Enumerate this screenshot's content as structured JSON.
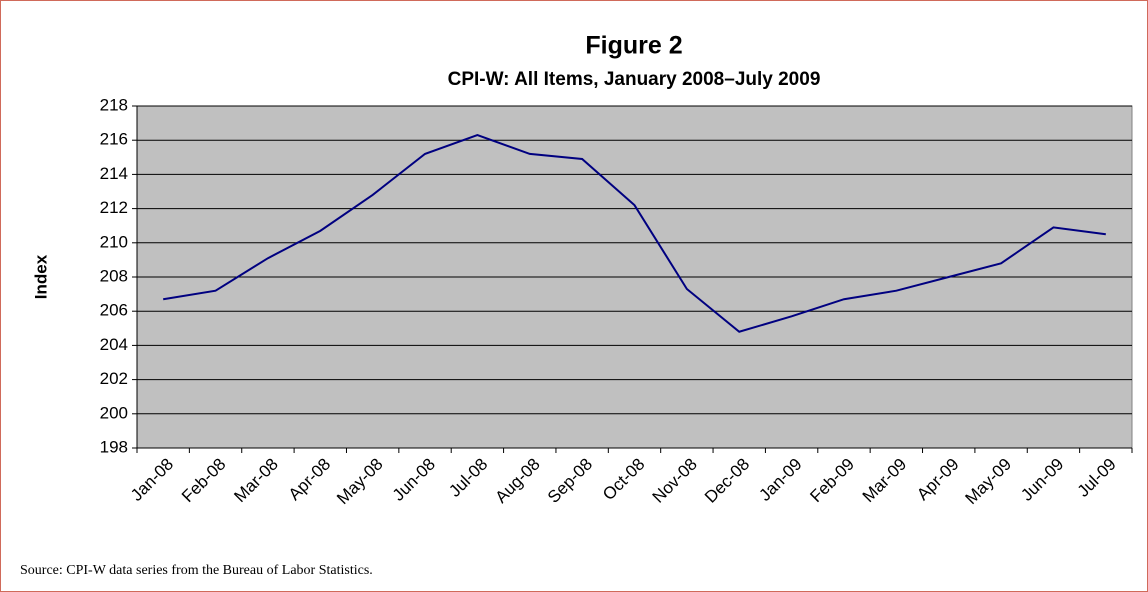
{
  "chart_data": {
    "type": "line",
    "title": "Figure 2",
    "subtitle": "CPI-W: All Items, January 2008–July 2009",
    "y_label": "Index",
    "categories": [
      "Jan-08",
      "Feb-08",
      "Mar-08",
      "Apr-08",
      "May-08",
      "Jun-08",
      "Jul-08",
      "Aug-08",
      "Sep-08",
      "Oct-08",
      "Nov-08",
      "Dec-08",
      "Jan-09",
      "Feb-09",
      "Mar-09",
      "Apr-09",
      "May-09",
      "Jun-09",
      "Jul-09"
    ],
    "series": [
      {
        "name": "CPI-W",
        "color": "#000080",
        "values": [
          206.7,
          207.2,
          209.1,
          210.7,
          212.8,
          215.2,
          216.3,
          215.2,
          214.9,
          212.2,
          207.3,
          204.8,
          205.7,
          206.7,
          207.2,
          208.0,
          208.8,
          210.9,
          210.5
        ]
      }
    ],
    "ylim": [
      198,
      218
    ],
    "yticks": [
      198,
      200,
      202,
      204,
      206,
      208,
      210,
      212,
      214,
      216,
      218
    ],
    "grid": true,
    "source": "Source: CPI-W data series from the Bureau of Labor Statistics."
  }
}
